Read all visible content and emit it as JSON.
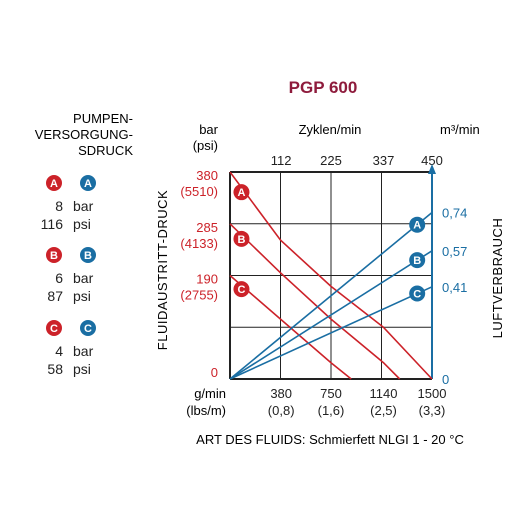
{
  "colors": {
    "red": "#cc2229",
    "blue": "#1a6ea3",
    "title": "#8e1b3c",
    "grid": "#222222"
  },
  "chart_data": {
    "type": "line",
    "title": "PGP 600",
    "x_axis": {
      "unit_top": "g/min",
      "unit_bottom": "(lbs/m)",
      "ticks": [
        {
          "value": 380,
          "label": "380",
          "sub": "(0,8)"
        },
        {
          "value": 750,
          "label": "750",
          "sub": "(1,6)"
        },
        {
          "value": 1140,
          "label": "1140",
          "sub": "(2,5)"
        },
        {
          "value": 1500,
          "label": "1500",
          "sub": "(3,3)"
        }
      ],
      "range": [
        0,
        1500
      ]
    },
    "top_axis": {
      "label": "Zyklen/min",
      "ticks": [
        "112",
        "225",
        "337",
        "450"
      ]
    },
    "left_axis": {
      "label": "FLUIDAUSTRITT-DRUCK",
      "unit_top": "bar",
      "unit_bottom": "(psi)",
      "range": [
        0,
        380
      ],
      "ticks": [
        {
          "value": 380,
          "label": "380",
          "sub": "(5510)"
        },
        {
          "value": 285,
          "label": "285",
          "sub": "(4133)"
        },
        {
          "value": 190,
          "label": "190",
          "sub": "(2755)"
        },
        {
          "value": 0,
          "label": "0",
          "sub": ""
        }
      ]
    },
    "right_axis": {
      "label": "LUFTVERBRAUCH",
      "unit": "m³/min",
      "range": [
        0,
        0.92
      ],
      "ticks": [
        {
          "value": 0.74,
          "label": "0,74"
        },
        {
          "value": 0.57,
          "label": "0,57"
        },
        {
          "value": 0.41,
          "label": "0,41"
        },
        {
          "value": 0,
          "label": "0"
        }
      ]
    },
    "grid": true,
    "pressure_series": [
      {
        "name": "A",
        "points": [
          [
            0,
            380
          ],
          [
            375,
            255
          ],
          [
            750,
            170
          ],
          [
            1140,
            95
          ],
          [
            1500,
            0
          ]
        ]
      },
      {
        "name": "B",
        "points": [
          [
            0,
            285
          ],
          [
            375,
            195
          ],
          [
            750,
            110
          ],
          [
            1140,
            30
          ],
          [
            1260,
            0
          ]
        ]
      },
      {
        "name": "C",
        "points": [
          [
            0,
            190
          ],
          [
            375,
            110
          ],
          [
            750,
            30
          ],
          [
            900,
            0
          ]
        ]
      }
    ],
    "air_series": [
      {
        "name": "A",
        "points": [
          [
            0,
            0
          ],
          [
            1500,
            0.74
          ]
        ]
      },
      {
        "name": "B",
        "points": [
          [
            0,
            0
          ],
          [
            1500,
            0.57
          ]
        ]
      },
      {
        "name": "C",
        "points": [
          [
            0,
            0
          ],
          [
            1500,
            0.41
          ]
        ]
      }
    ],
    "footnote": "ART DES FLUIDS: Schmierfett NLGI 1 - 20 °C"
  },
  "legend": {
    "heading": [
      "PUMPEN-",
      "VERSORGUNG-",
      "SDRUCK"
    ],
    "items": [
      {
        "letter": "A",
        "bar_value": "8",
        "bar_unit": "bar",
        "psi_value": "116",
        "psi_unit": "psi"
      },
      {
        "letter": "B",
        "bar_value": "6",
        "bar_unit": "bar",
        "psi_value": "87",
        "psi_unit": "psi"
      },
      {
        "letter": "C",
        "bar_value": "4",
        "bar_unit": "bar",
        "psi_value": "58",
        "psi_unit": "psi"
      }
    ]
  }
}
